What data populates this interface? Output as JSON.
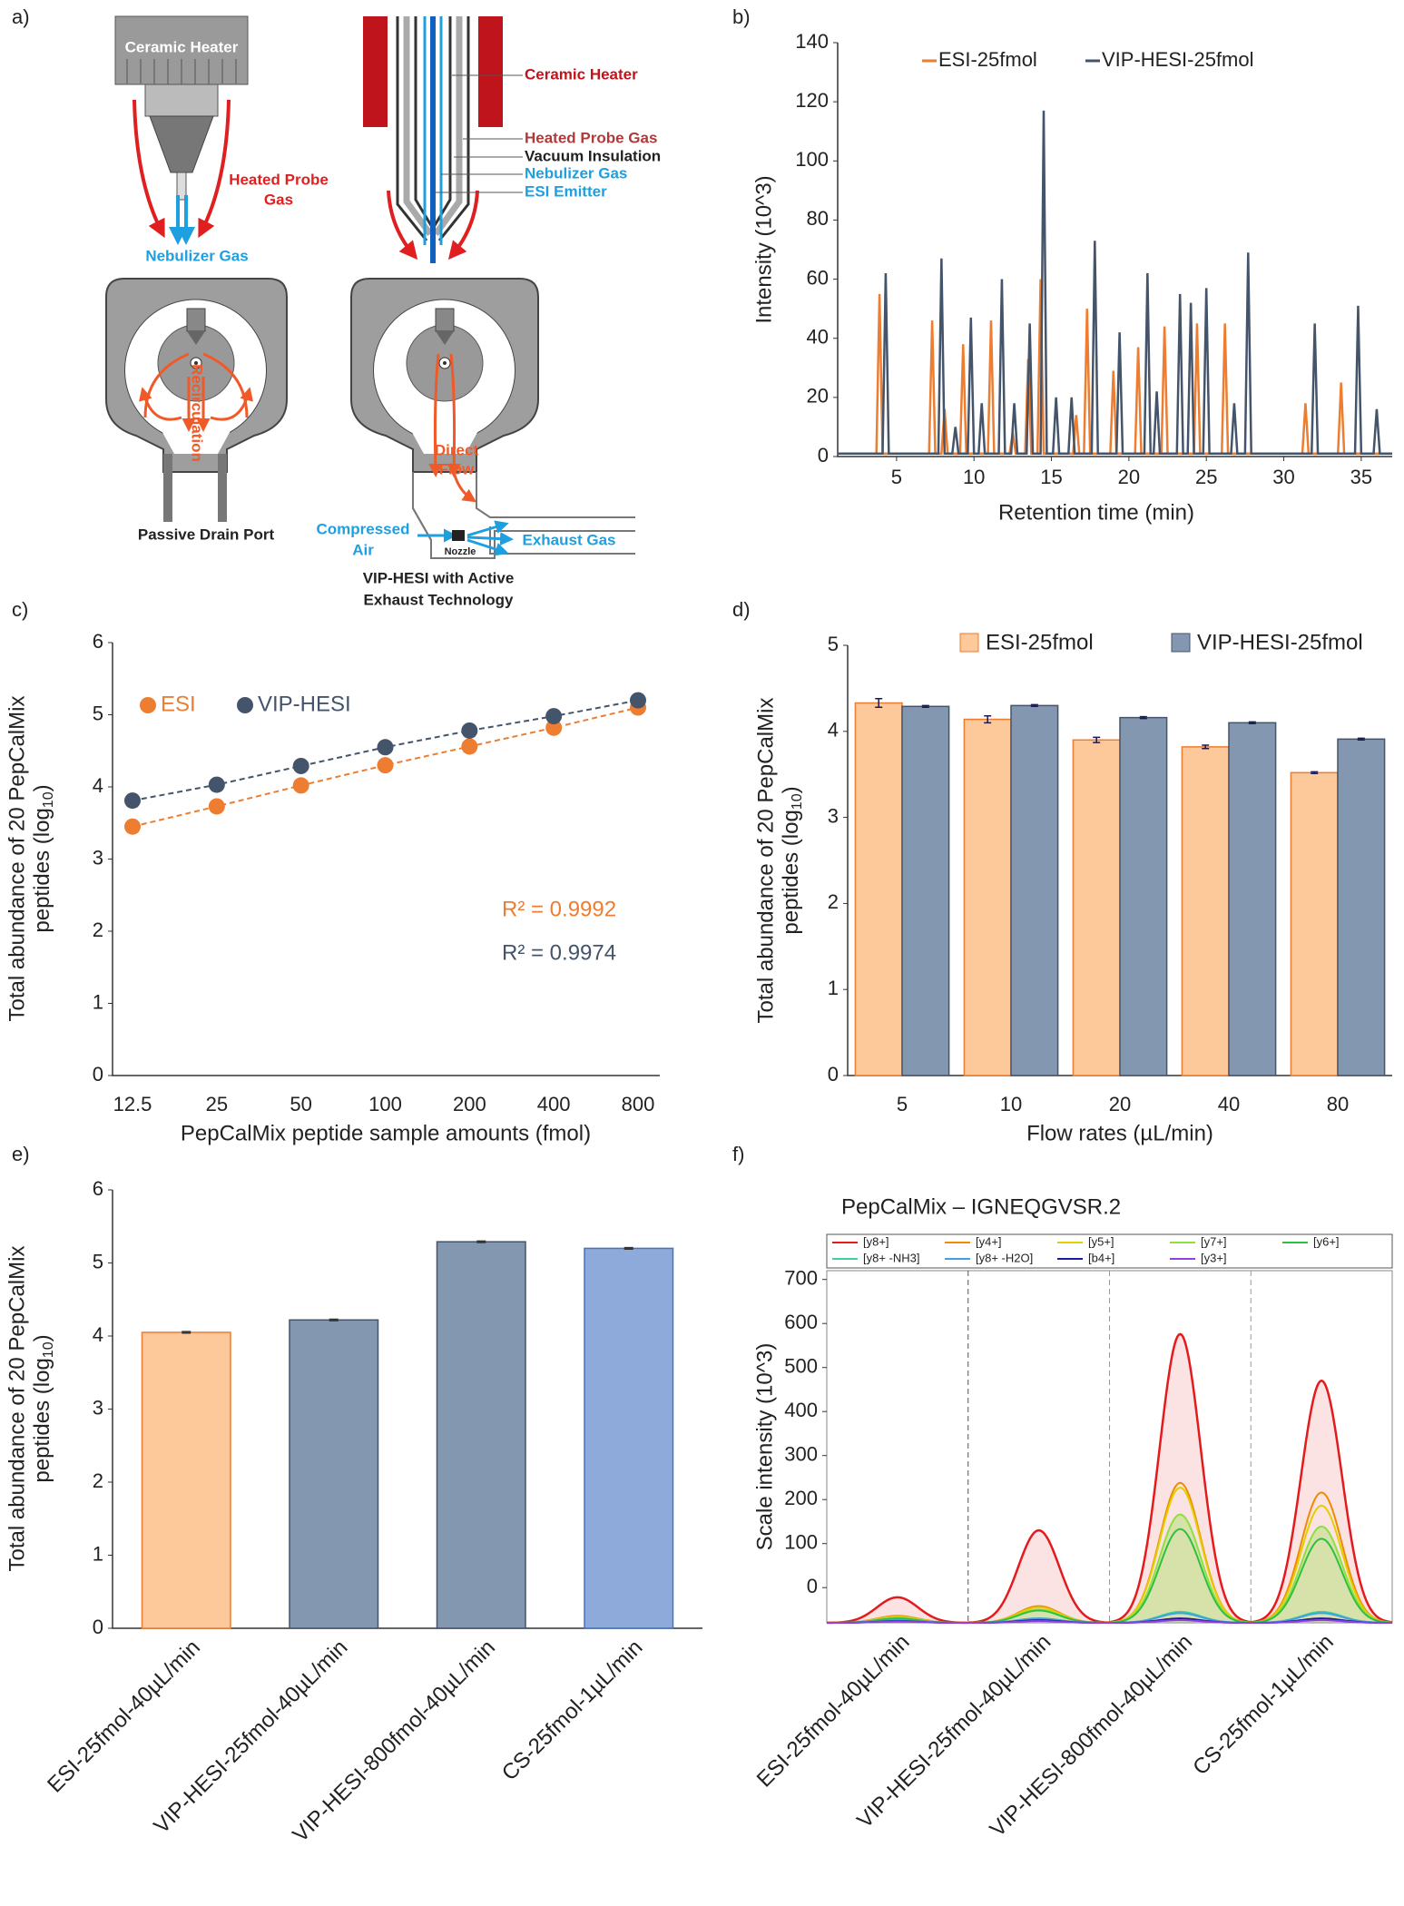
{
  "panel_labels": [
    "a)",
    "b)",
    "c)",
    "d)",
    "e)",
    "f)"
  ],
  "diagram": {
    "left": {
      "heater": "Ceramic Heater",
      "probe_gas": [
        "Heated Probe",
        "Gas"
      ],
      "nebulizer": "Nebulizer Gas",
      "recirculation": "Recirculation",
      "drain": "Passive Drain Port"
    },
    "right": {
      "heater": "Ceramic Heater",
      "probe_gas": "Heated Probe Gas",
      "vacuum": "Vacuum Insulation",
      "nebulizer": "Nebulizer Gas",
      "emitter": "ESI Emitter",
      "flow": [
        "Direct",
        "Flow"
      ],
      "air": [
        "Compressed",
        "Air"
      ],
      "nozzle": "Nozzle",
      "exhaust": "Exhaust Gas",
      "caption": [
        "VIP-HESI with Active",
        "Exhaust Technology"
      ]
    }
  },
  "chart_data": [
    {
      "type": "line",
      "ylabel": "Intensity (10^3)",
      "xlabel": "Retention time (min)",
      "xlim": [
        1.2,
        37
      ],
      "ylim": [
        0,
        140
      ],
      "xticks": [
        5,
        10,
        15,
        20,
        25,
        30,
        35
      ],
      "yticks": [
        0,
        20,
        40,
        60,
        80,
        100,
        120,
        140
      ],
      "legend": "top",
      "series": [
        {
          "name": "ESI-25fmol",
          "color": "#ed7d31",
          "x": [
            1.2,
            3.7,
            3.9,
            4.1,
            7.1,
            7.3,
            7.5,
            7.9,
            8.1,
            8.3,
            9.1,
            9.3,
            9.5,
            10.9,
            11.1,
            11.3,
            12.3,
            12.5,
            12.7,
            13.3,
            13.5,
            13.7,
            14.1,
            14.3,
            14.5,
            16.4,
            16.6,
            16.8,
            17.1,
            17.3,
            17.5,
            18.8,
            19.0,
            19.2,
            20.4,
            20.6,
            20.8,
            22.1,
            22.3,
            22.5,
            24.2,
            24.4,
            24.6,
            26.0,
            26.2,
            26.4,
            31.2,
            31.4,
            31.6,
            33.5,
            33.7,
            33.9,
            37
          ],
          "values": [
            1,
            1,
            55,
            1,
            1,
            46,
            1,
            1,
            16,
            1,
            1,
            38,
            1,
            1,
            46,
            1,
            1,
            8,
            1,
            1,
            33,
            1,
            1,
            60,
            1,
            1,
            14,
            1,
            1,
            50,
            1,
            1,
            29,
            1,
            1,
            37,
            1,
            1,
            44,
            1,
            1,
            45,
            1,
            1,
            45,
            1,
            1,
            18,
            1,
            1,
            25,
            1,
            1
          ]
        },
        {
          "name": "VIP-HESI-25fmol",
          "color": "#44546a",
          "x": [
            1.2,
            4.1,
            4.3,
            4.5,
            7.7,
            7.9,
            8.1,
            8.6,
            8.8,
            9.0,
            9.6,
            9.8,
            10.0,
            10.3,
            10.5,
            10.7,
            11.6,
            11.8,
            12.0,
            12.4,
            12.6,
            12.8,
            13.4,
            13.6,
            13.8,
            14.3,
            14.5,
            14.7,
            15.1,
            15.3,
            15.5,
            16.1,
            16.3,
            16.5,
            17.6,
            17.8,
            18.0,
            19.2,
            19.4,
            19.6,
            21.0,
            21.2,
            21.4,
            21.6,
            21.8,
            22.0,
            23.1,
            23.3,
            23.5,
            23.8,
            24.0,
            24.2,
            24.8,
            25.0,
            25.2,
            26.6,
            26.8,
            27.0,
            27.5,
            27.7,
            27.9,
            31.8,
            32.0,
            32.2,
            34.6,
            34.8,
            35.0,
            35.8,
            36.0,
            36.2,
            37
          ],
          "values": [
            1,
            1,
            62,
            1,
            1,
            67,
            1,
            1,
            10,
            1,
            1,
            47,
            1,
            1,
            18,
            1,
            1,
            60,
            1,
            1,
            18,
            1,
            1,
            45,
            1,
            1,
            117,
            1,
            1,
            20,
            1,
            1,
            20,
            1,
            1,
            73,
            1,
            1,
            42,
            1,
            1,
            62,
            1,
            1,
            22,
            1,
            1,
            55,
            1,
            1,
            52,
            1,
            1,
            57,
            1,
            1,
            18,
            1,
            1,
            69,
            1,
            1,
            45,
            1,
            1,
            51,
            1,
            1,
            16,
            1,
            1
          ]
        }
      ]
    },
    {
      "type": "line",
      "ylabel": [
        "Total abundance of 20 PepCalMix",
        "peptides (log",
        "10",
        ")"
      ],
      "xlabel": "PepCalMix peptide sample amounts (fmol)",
      "categories": [
        "12.5",
        "25",
        "50",
        "100",
        "200",
        "400",
        "800"
      ],
      "ylim": [
        0,
        6
      ],
      "yticks": [
        0,
        1,
        2,
        3,
        4,
        5,
        6
      ],
      "legend": "upper left",
      "series": [
        {
          "name": "ESI",
          "color": "#ed7d31",
          "values": [
            3.45,
            3.73,
            4.02,
            4.3,
            4.56,
            4.82,
            5.1
          ],
          "annotation": "R² = 0.9992"
        },
        {
          "name": "VIP-HESI",
          "color": "#44546a",
          "values": [
            3.81,
            4.03,
            4.29,
            4.55,
            4.78,
            4.98,
            5.2
          ],
          "annotation": "R² = 0.9974"
        }
      ]
    },
    {
      "type": "bar",
      "ylabel": [
        "Total abundance of 20 PepCalMix",
        "peptides (log",
        "10",
        ")"
      ],
      "xlabel": "Flow rates (µL/min)",
      "categories": [
        "5",
        "10",
        "20",
        "40",
        "80"
      ],
      "ylim": [
        0,
        5
      ],
      "yticks": [
        0,
        1,
        2,
        3,
        4,
        5
      ],
      "legend": "top",
      "series": [
        {
          "name": "ESI-25fmol",
          "color": "#fdc89a",
          "edgecolor": "#ed7d31",
          "values": [
            4.33,
            4.14,
            3.9,
            3.82,
            3.52
          ],
          "errors": [
            0.05,
            0.04,
            0.03,
            0.02,
            0.01
          ]
        },
        {
          "name": "VIP-HESI-25fmol",
          "color": "#8497b0",
          "edgecolor": "#44546a",
          "values": [
            4.29,
            4.3,
            4.16,
            4.1,
            3.91
          ],
          "errors": [
            0.01,
            0.01,
            0.01,
            0.01,
            0.01
          ]
        }
      ]
    },
    {
      "type": "bar",
      "ylabel": [
        "Total abundance of 20 PepCalMix",
        "peptides (log",
        "10",
        ")"
      ],
      "categories": [
        "ESI-25fmol-40µL/min",
        "VIP-HESI-25fmol-40µL/min",
        "VIP-HESI-800fmol-40µL/min",
        "CS-25fmol-1µL/min"
      ],
      "ylim": [
        0,
        6
      ],
      "yticks": [
        0,
        1,
        2,
        3,
        4,
        5,
        6
      ],
      "values": [
        4.05,
        4.22,
        5.29,
        5.2
      ],
      "errors": [
        0.01,
        0.01,
        0.01,
        0.01
      ],
      "colors": [
        "#fdc89a",
        "#8497b0",
        "#8497b0",
        "#8eaadb"
      ],
      "edgecolors": [
        "#ed7d31",
        "#44546a",
        "#44546a",
        "#4472c4"
      ]
    },
    {
      "type": "peaks",
      "title": "PepCalMix – IGNEQGVSR.2",
      "ylabel": "Scale intensity (10^3)",
      "categories": [
        "ESI-25fmol-40µL/min",
        "VIP-HESI-25fmol-40µL/min",
        "VIP-HESI-800fmol-40µL/min",
        "CS-25fmol-1µL/min"
      ],
      "ylim": [
        -80,
        720
      ],
      "yticks": [
        0,
        100,
        200,
        300,
        400,
        500,
        600,
        700
      ],
      "legend": "top",
      "series": [
        {
          "name": "[y8+]",
          "color": "#e41a1c",
          "values": [
            -22,
            130,
            576,
            470
          ],
          "fill": true
        },
        {
          "name": "[y4+]",
          "color": "#f08a00",
          "values": [
            -64,
            -42,
            238,
            216
          ]
        },
        {
          "name": "[y5+]",
          "color": "#e0d000",
          "values": [
            -66,
            -45,
            227,
            186
          ]
        },
        {
          "name": "[y7+]",
          "color": "#8ee040",
          "values": [
            -68,
            -50,
            166,
            139
          ],
          "fill": true
        },
        {
          "name": "[y6+]",
          "color": "#30c040",
          "values": [
            -70,
            -52,
            133,
            111
          ]
        },
        {
          "name": "[y8+ -NH3]",
          "color": "#40d0a0",
          "values": [
            -74,
            -70,
            -55,
            -55
          ]
        },
        {
          "name": "[y8+ -H2O]",
          "color": "#40a0e0",
          "values": [
            -74,
            -70,
            -58,
            -58
          ]
        },
        {
          "name": "[b4+]",
          "color": "#1a1aa0",
          "values": [
            -76,
            -74,
            -70,
            -70
          ]
        },
        {
          "name": "[y3+]",
          "color": "#9040e0",
          "values": [
            -77,
            -76,
            -74,
            -74
          ]
        }
      ]
    }
  ]
}
